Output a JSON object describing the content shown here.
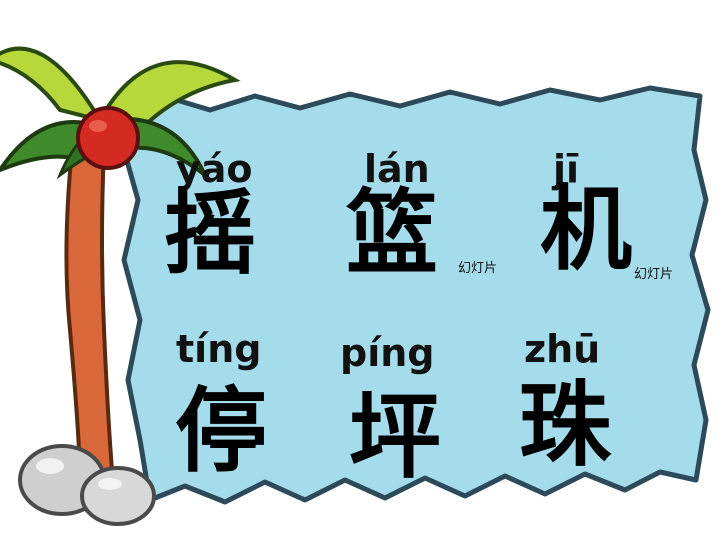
{
  "colors": {
    "board": "#a5dcec",
    "board_outline": "#2c4a5a",
    "trunk": "#d9683a",
    "leaf_light": "#b7d83a",
    "leaf_dark": "#3f8a2a",
    "coconut": "#d42a22",
    "rock": "#cfcfcf"
  },
  "words": [
    {
      "pinyin": "yáo",
      "hanzi": "摇"
    },
    {
      "pinyin": "lán",
      "hanzi": "篮"
    },
    {
      "pinyin": "jī",
      "hanzi": "机"
    },
    {
      "pinyin": "tíng",
      "hanzi": "停"
    },
    {
      "pinyin": "píng",
      "hanzi": "坪"
    },
    {
      "pinyin": "zhū",
      "hanzi": "珠"
    }
  ],
  "captions": [
    "幻灯片",
    "幻灯片"
  ],
  "decor": {
    "tree_icon": "palm-tree-icon",
    "rock_icon": "rock-icon"
  }
}
